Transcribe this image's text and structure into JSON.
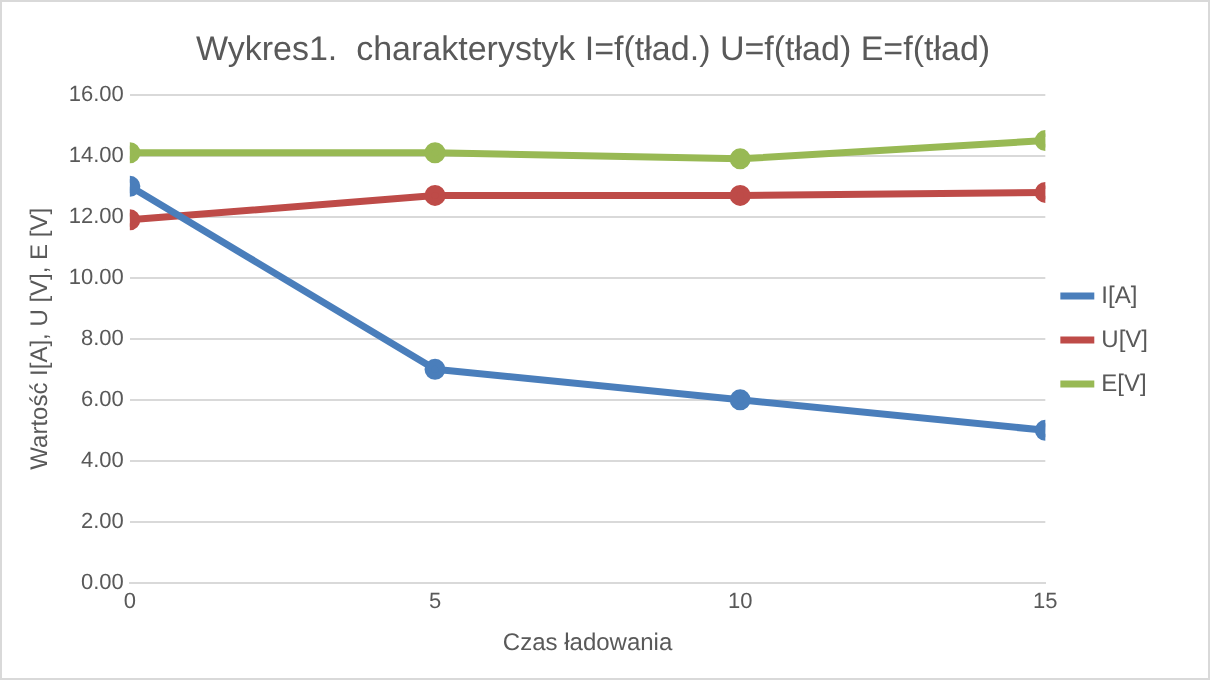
{
  "chart_data": {
    "type": "line",
    "title": "Wykres1.  charakterystyk I=f(tład.) U=f(tład) E=f(tład)",
    "xlabel": "Czas ładowania",
    "ylabel": "Wartość I[A], U [V], E [V]",
    "x": [
      0,
      5,
      10,
      15
    ],
    "series": [
      {
        "name": "I[A]",
        "color": "#4a7ebb",
        "values": [
          13,
          7,
          6,
          5
        ]
      },
      {
        "name": "U[V]",
        "color": "#be4b48",
        "values": [
          11.9,
          12.7,
          12.7,
          12.8
        ]
      },
      {
        "name": "E[V]",
        "color": "#98b954",
        "values": [
          14.1,
          14.1,
          13.9,
          14.5
        ]
      }
    ],
    "xlim": [
      0,
      15
    ],
    "xticks": [
      0,
      5,
      10,
      15
    ],
    "ylim": [
      0,
      16
    ],
    "yticks": [
      {
        "value": 0,
        "label": "0.00"
      },
      {
        "value": 2,
        "label": "2.00"
      },
      {
        "value": 4,
        "label": "4.00"
      },
      {
        "value": 6,
        "label": "6.00"
      },
      {
        "value": 8,
        "label": "8.00"
      },
      {
        "value": 10,
        "label": "10.00"
      },
      {
        "value": 12,
        "label": "12.00"
      },
      {
        "value": 14,
        "label": "14.00"
      },
      {
        "value": 16,
        "label": "16.00"
      }
    ],
    "grid": "y",
    "legend": "right",
    "marker": "circle",
    "line_style": "solid"
  }
}
